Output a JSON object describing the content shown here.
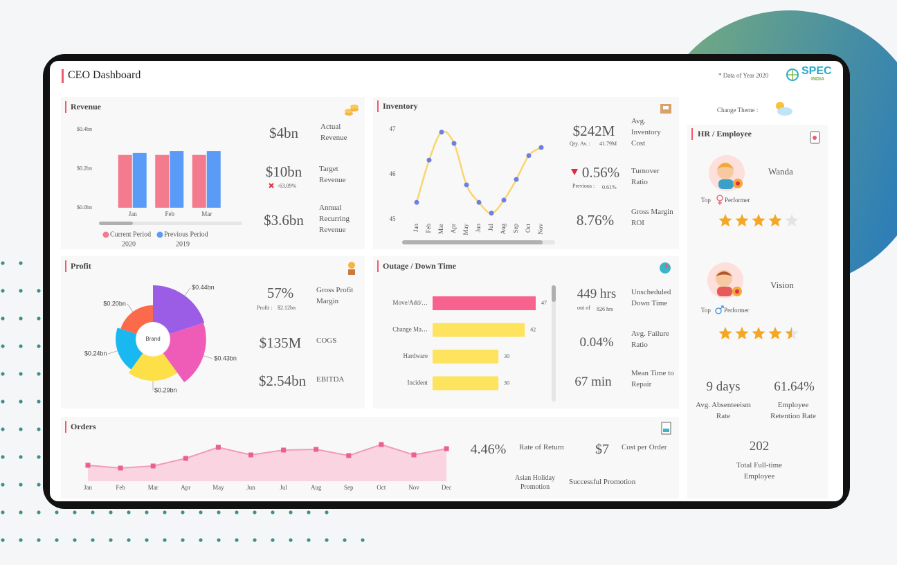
{
  "header": {
    "title": "CEO Dashboard",
    "note": "* Data of Year 2020",
    "logo": "SPEC",
    "logo_sub": "INDIA",
    "theme_label": "Change Theme :"
  },
  "chart_data": [
    {
      "type": "bar",
      "title": "Revenue",
      "categories": [
        "Jan",
        "Feb",
        "Mar"
      ],
      "series": [
        {
          "name": "Current Period",
          "period": "2020",
          "color": "#f47a8e",
          "values": [
            0.27,
            0.27,
            0.27
          ]
        },
        {
          "name": "Previous Period",
          "period": "2019",
          "color": "#5b9bf8",
          "values": [
            0.28,
            0.29,
            0.29
          ]
        }
      ],
      "ylim": [
        0,
        0.4
      ],
      "yticks": [
        {
          "value": 0,
          "label": "$0.0bn"
        },
        {
          "value": 0.2,
          "label": "$0.2bn"
        },
        {
          "value": 0.4,
          "label": "$0.4bn"
        }
      ]
    },
    {
      "type": "line",
      "title": "Inventory",
      "categories": [
        "Jan",
        "Feb",
        "Mar",
        "Apr",
        "May",
        "Jun",
        "Jul",
        "Aug",
        "Sep",
        "Oct",
        "Nov"
      ],
      "values": [
        45.38,
        46.32,
        46.94,
        46.69,
        45.77,
        45.38,
        45.14,
        45.43,
        45.89,
        46.42,
        46.6
      ],
      "color": "#f9d56e",
      "marker_color": "#6b7fe6",
      "ylim": [
        45,
        47
      ],
      "yticks": [
        45,
        46,
        47
      ]
    },
    {
      "type": "pie",
      "title": "Profit",
      "center_label": "Brand",
      "values": [
        0.44,
        0.43,
        0.29,
        0.24,
        0.2
      ],
      "value_labels": [
        "$0.44bn",
        "$0.43bn",
        "$0.29bn",
        "$0.24bn",
        "$0.20bn"
      ],
      "colors": [
        "#9b5de5",
        "#ef5cb8",
        "#fde047",
        "#1ab8f0",
        "#fb6a4a"
      ]
    },
    {
      "type": "bar",
      "orientation": "horizontal",
      "title": "Outage / Down Time",
      "categories": [
        "Move/Add/…",
        "Change Ma…",
        "Hardware",
        "Incident"
      ],
      "values": [
        47,
        42,
        30,
        30
      ],
      "colors": [
        "#f7628e",
        "#fde35e",
        "#fde35e",
        "#fde35e"
      ]
    },
    {
      "type": "area",
      "title": "Orders",
      "categories": [
        "Jan",
        "Feb",
        "Mar",
        "Apr",
        "May",
        "Jun",
        "Jul",
        "Aug",
        "Sep",
        "Oct",
        "Nov",
        "Dec"
      ],
      "values": [
        23,
        19,
        22,
        33,
        49,
        38,
        45,
        46,
        37,
        53,
        38,
        47
      ],
      "color": "#f29ab8",
      "fill": "#fad4e0",
      "marker_color": "#ea6190"
    }
  ],
  "revenue_kpis": [
    {
      "value": "$4bn",
      "label": "Actual Revenue"
    },
    {
      "value": "$10bn",
      "label": "Target Revenue",
      "change": "-63.09%"
    },
    {
      "value": "$3.6bn",
      "label": "Annual Recurring Revenue"
    }
  ],
  "inventory_kpis": [
    {
      "value": "$242M",
      "label": "Avg. Inventory Cost",
      "sub_label": "Qty. Av. :",
      "sub_value": "41.79M"
    },
    {
      "value": "0.56%",
      "label": "Turnover Ratio",
      "sub_label": "Previous :",
      "sub_value": "0.61%"
    },
    {
      "value": "8.76%",
      "label": "Gross Margin ROI"
    }
  ],
  "profit_kpis": [
    {
      "value": "57%",
      "label": "Gross Profit Margin",
      "sub_label": "Profit :",
      "sub_value": "$2.12bn"
    },
    {
      "value": "$135M",
      "label": "COGS"
    },
    {
      "value": "$2.54bn",
      "label": "EBITDA"
    }
  ],
  "outage_kpis": [
    {
      "value": "449 hrs",
      "label": "Unscheduled Down Time",
      "sub_label": "out of",
      "sub_value": "826 hrs"
    },
    {
      "value": "0.04%",
      "label": "Avg. Failure Ratio"
    },
    {
      "value": "67 min",
      "label": "Mean Time to Repair"
    }
  ],
  "orders_kpis": [
    {
      "value": "4.46%",
      "label": "Rate of Return"
    },
    {
      "value": "$7",
      "label": "Cost per Order"
    }
  ],
  "promotions": [
    "Asian Holiday Promotion",
    "Successful Promotion"
  ],
  "hr": {
    "title": "HR / Employee",
    "employees": [
      {
        "name": "Wanda",
        "top": "Top",
        "badge": "Performer",
        "rating": 4
      },
      {
        "name": "Vision",
        "top": "Top",
        "badge": "Performer",
        "rating": 4.5
      }
    ],
    "stats": [
      {
        "value": "9 days",
        "label": "Avg. Absenteeism Rate"
      },
      {
        "value": "61.64%",
        "label": "Employee Retention Rate"
      },
      {
        "value": "202",
        "label": "Total Full-time Employee"
      }
    ]
  }
}
